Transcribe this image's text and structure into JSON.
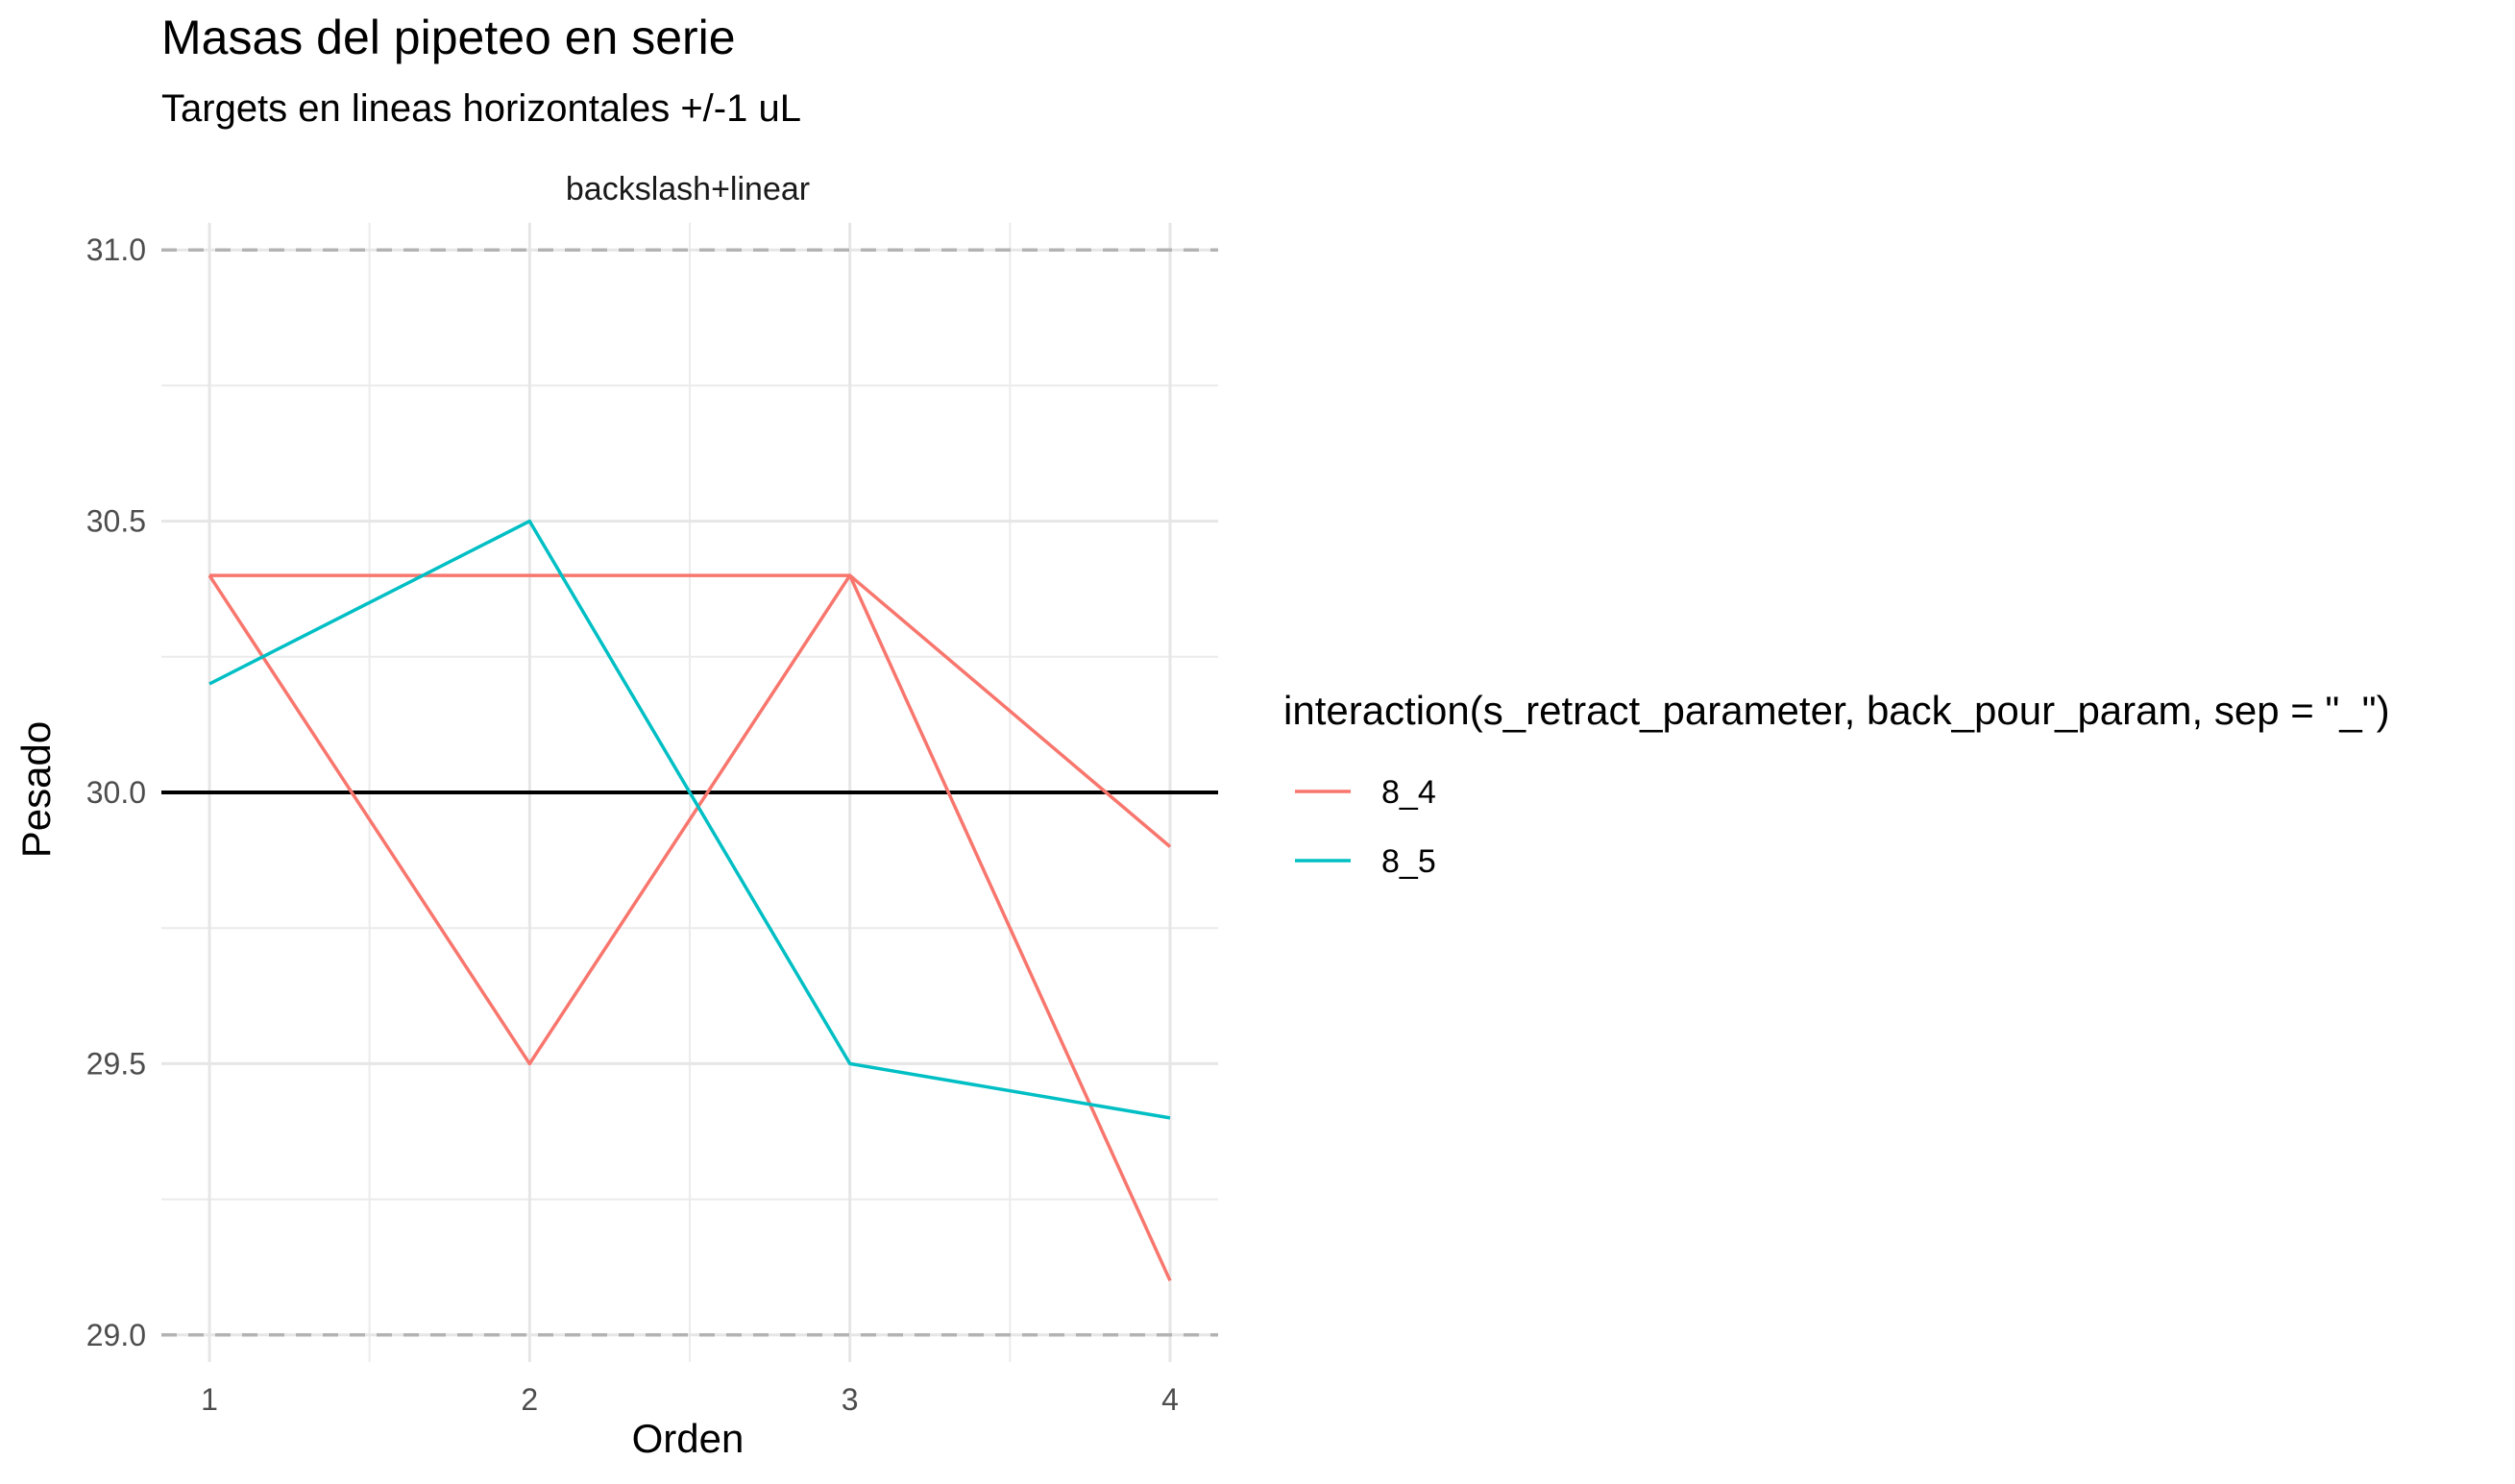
{
  "chart_data": {
    "type": "line",
    "title": "Masas del pipeteo en serie",
    "subtitle": "Targets en lineas horizontales +/-1 uL",
    "facet_label": "backslash+linear",
    "xlabel": "Orden",
    "ylabel": "Pesado",
    "x": [
      1,
      2,
      3,
      4
    ],
    "xlim": [
      0.85,
      4.15
    ],
    "ylim": [
      28.95,
      31.05
    ],
    "x_ticks": [
      "1",
      "2",
      "3",
      "4"
    ],
    "y_ticks": [
      "29.0",
      "29.5",
      "30.0",
      "30.5",
      "31.0"
    ],
    "grid": true,
    "reference_lines": [
      {
        "y": 30.0,
        "style": "solid",
        "color": "#000000"
      },
      {
        "y": 29.0,
        "style": "dashed",
        "color": "#b3b3b3"
      },
      {
        "y": 31.0,
        "style": "dashed",
        "color": "#b3b3b3"
      }
    ],
    "legend": {
      "title": "interaction(s_retract_parameter, back_pour_param, sep = \"_\")",
      "placement": "right"
    },
    "series": [
      {
        "name": "8_4",
        "color": "#F8766D",
        "runs": [
          {
            "x": [
              1,
              2,
              3,
              4
            ],
            "y": [
              30.4,
              30.4,
              30.4,
              29.9
            ]
          },
          {
            "x": [
              1,
              2,
              3,
              4
            ],
            "y": [
              30.4,
              29.5,
              30.4,
              29.1
            ]
          }
        ]
      },
      {
        "name": "8_5",
        "color": "#00BFC4",
        "runs": [
          {
            "x": [
              1,
              2,
              3,
              4
            ],
            "y": [
              30.2,
              30.5,
              29.5,
              29.4
            ]
          }
        ]
      }
    ]
  }
}
